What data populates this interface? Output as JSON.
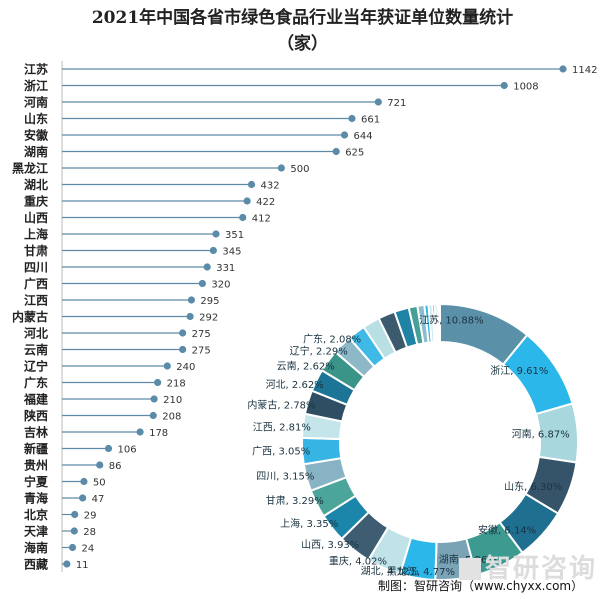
{
  "chart_data": [
    {
      "type": "lollipop",
      "title": "2021年中国各省市绿色食品行业当年获证单位数量统计",
      "subtitle": "（家）",
      "categories": [
        "江苏",
        "浙江",
        "河南",
        "山东",
        "安徽",
        "湖南",
        "黑龙江",
        "湖北",
        "重庆",
        "山西",
        "上海",
        "甘肃",
        "四川",
        "广西",
        "江西",
        "内蒙古",
        "河北",
        "云南",
        "辽宁",
        "广东",
        "福建",
        "陕西",
        "吉林",
        "新疆",
        "贵州",
        "宁夏",
        "青海",
        "北京",
        "天津",
        "海南",
        "西藏"
      ],
      "values": [
        1142,
        1008,
        721,
        661,
        644,
        625,
        500,
        432,
        422,
        412,
        351,
        345,
        331,
        320,
        295,
        292,
        275,
        275,
        240,
        218,
        210,
        208,
        178,
        106,
        86,
        50,
        47,
        29,
        28,
        24,
        11
      ],
      "xlim": [
        0,
        1142
      ],
      "color": "#5b8ba8"
    },
    {
      "type": "pie",
      "style": "donut",
      "slices": [
        {
          "label": "江苏",
          "value": 10.88,
          "text": "江苏, 10.88%",
          "color": "#5b91a8"
        },
        {
          "label": "浙江",
          "value": 9.61,
          "text": "浙江, 9.61%",
          "color": "#2cb7ea"
        },
        {
          "label": "河南",
          "value": 6.87,
          "text": "河南, 6.87%",
          "color": "#a8d8de"
        },
        {
          "label": "山东",
          "value": 6.3,
          "text": "山东, 6.30%",
          "color": "#35546a"
        },
        {
          "label": "安徽",
          "value": 6.14,
          "text": "安徽, 6.14%",
          "color": "#1f6f91"
        },
        {
          "label": "湖南",
          "value": 5.96,
          "text": "湖南, 5.96%",
          "color": "#3d9a90"
        },
        {
          "label": "黑龙江",
          "value": 4.77,
          "text": "黑龙江, 4.77%",
          "color": "#7aa3b6"
        },
        {
          "label": "湖北",
          "value": 4.12,
          "text": "湖北, 4.12%",
          "color": "#2cb7ea"
        },
        {
          "label": "重庆",
          "value": 4.02,
          "text": "重庆, 4.02%",
          "color": "#bfe3e8"
        },
        {
          "label": "山西",
          "value": 3.93,
          "text": "山西, 3.93%",
          "color": "#3f5d72"
        },
        {
          "label": "上海",
          "value": 3.35,
          "text": "上海, 3.35%",
          "color": "#1b86a9"
        },
        {
          "label": "甘肃",
          "value": 3.29,
          "text": "甘肃, 3.29%",
          "color": "#4ba59a"
        },
        {
          "label": "四川",
          "value": 3.15,
          "text": "四川, 3.15%",
          "color": "#88b3c4"
        },
        {
          "label": "广西",
          "value": 3.05,
          "text": "广西, 3.05%",
          "color": "#36b4e3"
        },
        {
          "label": "江西",
          "value": 2.81,
          "text": "江西, 2.81%",
          "color": "#c4e5e9"
        },
        {
          "label": "内蒙古",
          "value": 2.78,
          "text": "内蒙古, 2.78%",
          "color": "#2e4f63"
        },
        {
          "label": "河北",
          "value": 2.62,
          "text": "河北, 2.62%",
          "color": "#1c7596"
        },
        {
          "label": "云南",
          "value": 2.62,
          "text": "云南, 2.62%",
          "color": "#3a9488"
        },
        {
          "label": "辽宁",
          "value": 2.29,
          "text": "辽宁, 2.29%",
          "color": "#8cb8c8"
        },
        {
          "label": "广东",
          "value": 2.08,
          "text": "广东, 2.08%",
          "color": "#3fb9e6"
        },
        {
          "label": "福建",
          "value": 2.0,
          "color": "#b7dfe4"
        },
        {
          "label": "陕西",
          "value": 1.98,
          "color": "#3b5a6e"
        },
        {
          "label": "吉林",
          "value": 1.7,
          "color": "#1f83a6"
        },
        {
          "label": "新疆",
          "value": 1.01,
          "color": "#45a096"
        },
        {
          "label": "贵州",
          "value": 0.82,
          "color": "#8fbccb"
        },
        {
          "label": "宁夏",
          "value": 0.48,
          "color": "#2cb7ea"
        },
        {
          "label": "青海",
          "value": 0.45,
          "color": "#cbe8ec"
        },
        {
          "label": "北京",
          "value": 0.28,
          "color": "#2e4f63"
        },
        {
          "label": "天津",
          "value": 0.27,
          "color": "#1c7596"
        },
        {
          "label": "海南",
          "value": 0.23,
          "color": "#3a9488"
        },
        {
          "label": "西藏",
          "value": 0.1,
          "color": "#8cb8c8"
        }
      ]
    }
  ],
  "footer": {
    "source": "制图：智研咨询（www.chyxx.com）",
    "website": "www.chyxx.com"
  },
  "watermark": "智研咨询"
}
